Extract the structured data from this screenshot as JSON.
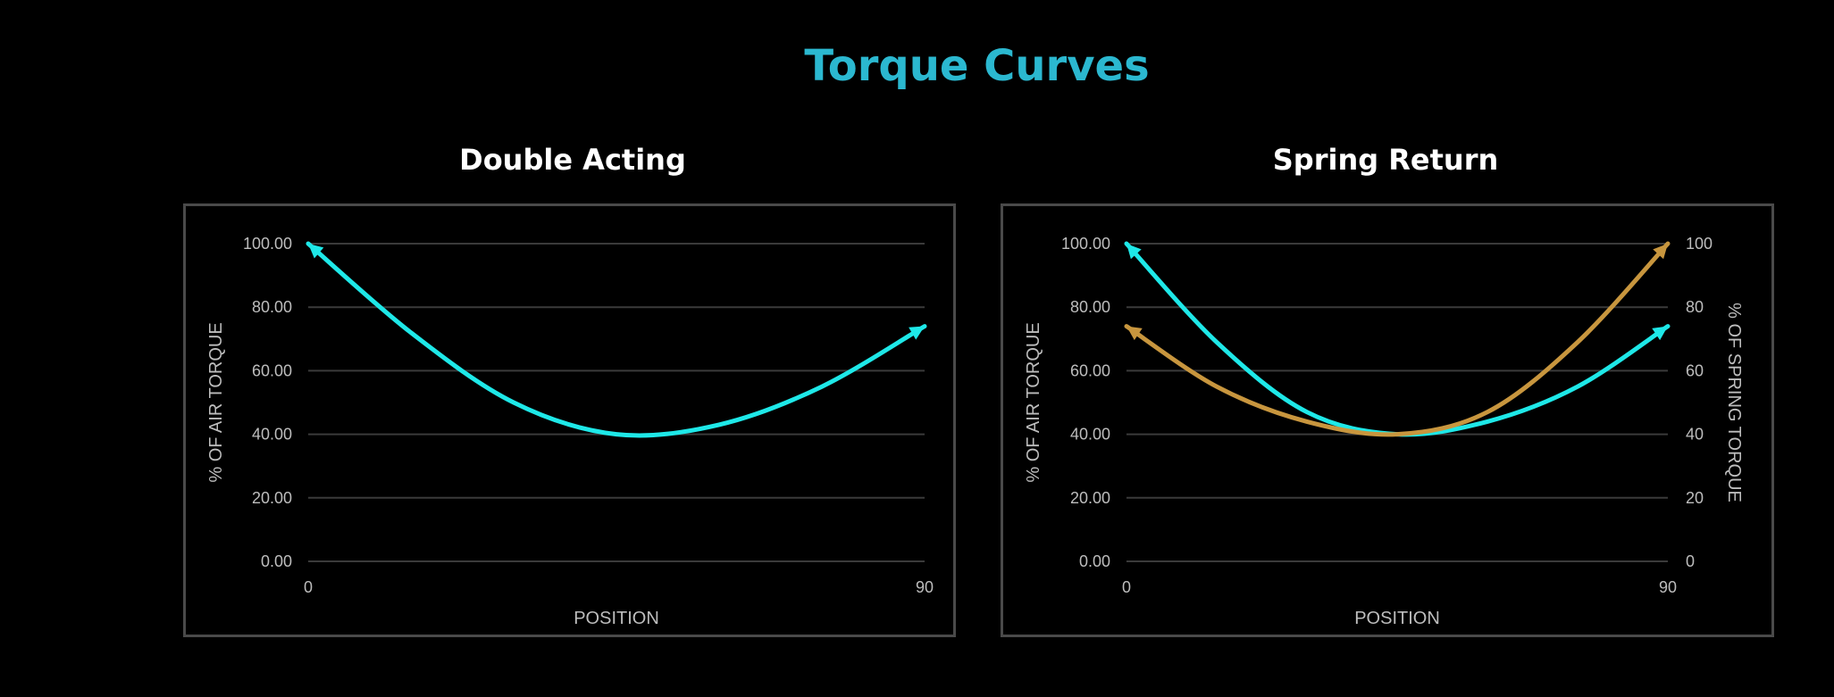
{
  "page": {
    "title": "Torque Curves",
    "title_color": "#2bb8d0",
    "background": "#000000"
  },
  "chart_data": [
    {
      "type": "line",
      "title": "Double Acting",
      "xlabel": "POSITION",
      "ylabel": "% OF AIR TORQUE",
      "xlim": [
        0,
        90
      ],
      "ylim": [
        0,
        100
      ],
      "x_ticks": [
        "0",
        "90"
      ],
      "y_ticks": [
        "0.00",
        "20.00",
        "40.00",
        "60.00",
        "80.00",
        "100.00"
      ],
      "grid": true,
      "series": [
        {
          "color": "#1ee8e8",
          "axis": "left",
          "arrows": "both",
          "x": [
            0,
            15,
            30,
            45,
            60,
            75,
            90
          ],
          "y": [
            100,
            72,
            50,
            40,
            43,
            55,
            74
          ]
        }
      ]
    },
    {
      "type": "line",
      "title": "Spring Return",
      "xlabel": "POSITION",
      "ylabel": "% OF AIR TORQUE",
      "y2label": "% OF SPRING TORQUE",
      "xlim": [
        0,
        90
      ],
      "ylim": [
        0,
        100
      ],
      "y2lim": [
        0,
        100
      ],
      "x_ticks": [
        "0",
        "90"
      ],
      "y_ticks": [
        "0.00",
        "20.00",
        "40.00",
        "60.00",
        "80.00",
        "100.00"
      ],
      "y2_ticks": [
        "0",
        "20",
        "40",
        "60",
        "80",
        "100"
      ],
      "grid": true,
      "series": [
        {
          "color": "#1ee8e8",
          "axis": "left",
          "arrows": "both",
          "x": [
            0,
            15,
            30,
            45,
            60,
            75,
            90
          ],
          "y": [
            100,
            69,
            47,
            40,
            44,
            55,
            74
          ]
        },
        {
          "color": "#c8963e",
          "axis": "right",
          "arrows": "both",
          "x": [
            0,
            15,
            30,
            45,
            60,
            75,
            90
          ],
          "y": [
            74,
            55,
            44,
            40,
            47,
            69,
            100
          ]
        }
      ]
    }
  ]
}
